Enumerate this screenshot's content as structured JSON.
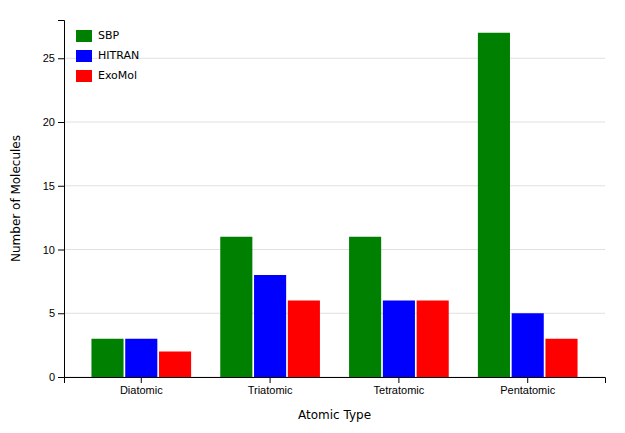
{
  "chart_data": {
    "type": "bar",
    "xlabel": "Atomic Type",
    "ylabel": "Number of Molecules",
    "categories": [
      "Diatomic",
      "Triatomic",
      "Tetratomic",
      "Pentatomic"
    ],
    "series": [
      {
        "name": "SBP",
        "color": "#008000",
        "values": [
          3,
          11,
          11,
          27
        ]
      },
      {
        "name": "HITRAN",
        "color": "#0000ff",
        "values": [
          3,
          8,
          6,
          5
        ]
      },
      {
        "name": "ExoMol",
        "color": "#ff0000",
        "values": [
          2,
          6,
          6,
          3
        ]
      }
    ],
    "ylim": [
      0,
      28
    ],
    "yticks": [
      0,
      5,
      10,
      15,
      20,
      25
    ],
    "grid": true,
    "legend": "upper left"
  }
}
